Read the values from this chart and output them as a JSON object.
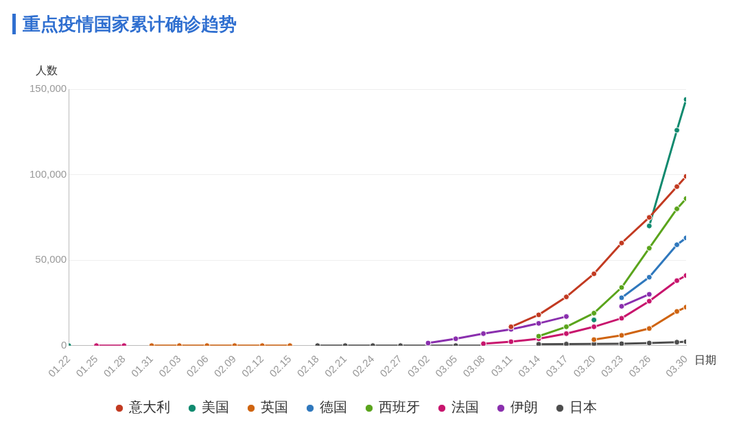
{
  "chart_data": {
    "type": "line",
    "title": "重点疫情国家累计确诊趋势",
    "ylabel": "人数",
    "xlabel": "日期",
    "x": [
      "--01-22",
      "--01-25",
      "--01-28",
      "--01-31",
      "--02-03",
      "--02-06",
      "--02-09",
      "--02-12",
      "--02-15",
      "--02-18",
      "--02-21",
      "--02-24",
      "--02-27",
      "--03-02",
      "--03-05",
      "--03-08",
      "--03-11",
      "--03-14",
      "--03-17",
      "--03-20",
      "--03-23",
      "--03-26",
      "--03-29",
      "--03-30"
    ],
    "xlim": [
      "--01-22",
      "--03-30"
    ],
    "xticks": [
      {
        "value": "--01-22",
        "label": "01.22"
      },
      {
        "value": "--01-25",
        "label": "01.25"
      },
      {
        "value": "--01-28",
        "label": "01.28"
      },
      {
        "value": "--01-31",
        "label": "01.31"
      },
      {
        "value": "--02-03",
        "label": "02.03"
      },
      {
        "value": "--02-06",
        "label": "02.06"
      },
      {
        "value": "--02-09",
        "label": "02.09"
      },
      {
        "value": "--02-12",
        "label": "02.12"
      },
      {
        "value": "--02-15",
        "label": "02.15"
      },
      {
        "value": "--02-18",
        "label": "02.18"
      },
      {
        "value": "--02-21",
        "label": "02.21"
      },
      {
        "value": "--02-24",
        "label": "02.24"
      },
      {
        "value": "--02-27",
        "label": "02.27"
      },
      {
        "value": "--03-02",
        "label": "03.02"
      },
      {
        "value": "--03-05",
        "label": "03.05"
      },
      {
        "value": "--03-08",
        "label": "03.08"
      },
      {
        "value": "--03-11",
        "label": "03.11"
      },
      {
        "value": "--03-14",
        "label": "03.14"
      },
      {
        "value": "--03-17",
        "label": "03.17"
      },
      {
        "value": "--03-20",
        "label": "03.20"
      },
      {
        "value": "--03-23",
        "label": "03.23"
      },
      {
        "value": "--03-26",
        "label": "03.26"
      },
      {
        "value": "--03-30",
        "label": "03.30"
      }
    ],
    "ylim": [
      0,
      150000
    ],
    "yticks": [
      0,
      {
        "value": 50000,
        "label": "50,000"
      },
      {
        "value": 100000,
        "label": "100,000"
      },
      {
        "value": 150000,
        "label": "150,000"
      }
    ],
    "grid": "y",
    "legend": "bottom",
    "marker": "circle",
    "line_style": "solid",
    "series": [
      {
        "name": "意大利",
        "color": "#c23a21",
        "values": [
          null,
          null,
          null,
          null,
          null,
          null,
          null,
          null,
          null,
          null,
          null,
          null,
          null,
          null,
          null,
          null,
          11000,
          18000,
          28500,
          42000,
          60000,
          75000,
          93000,
          99000
        ]
      },
      {
        "name": "美国",
        "color": "#108a6f",
        "values": [
          0,
          null,
          null,
          null,
          null,
          null,
          null,
          null,
          null,
          null,
          null,
          null,
          null,
          null,
          null,
          null,
          null,
          null,
          null,
          15000,
          null,
          70000,
          126000,
          144000
        ]
      },
      {
        "name": "英国",
        "color": "#cf6410",
        "values": [
          null,
          null,
          null,
          0,
          0,
          0,
          0,
          0,
          0,
          null,
          null,
          null,
          null,
          null,
          null,
          null,
          null,
          null,
          null,
          3500,
          6000,
          10000,
          20000,
          22500
        ]
      },
      {
        "name": "德国",
        "color": "#2f78bd",
        "values": [
          null,
          null,
          null,
          null,
          null,
          null,
          null,
          null,
          null,
          null,
          null,
          null,
          null,
          null,
          null,
          null,
          null,
          null,
          null,
          null,
          28000,
          40000,
          59000,
          63000
        ]
      },
      {
        "name": "西班牙",
        "color": "#5aa41c",
        "values": [
          null,
          null,
          null,
          null,
          null,
          null,
          null,
          null,
          null,
          null,
          null,
          null,
          null,
          null,
          null,
          null,
          null,
          5500,
          11000,
          19000,
          34000,
          57000,
          80000,
          86000
        ]
      },
      {
        "name": "法国",
        "color": "#c8156d",
        "values": [
          null,
          0,
          0,
          null,
          null,
          null,
          null,
          null,
          null,
          null,
          null,
          null,
          null,
          null,
          null,
          1100,
          2300,
          4000,
          7000,
          11000,
          16000,
          26000,
          38000,
          41000
        ]
      },
      {
        "name": "伊朗",
        "color": "#8a2fae",
        "values": [
          null,
          null,
          null,
          null,
          null,
          null,
          null,
          null,
          null,
          null,
          null,
          null,
          null,
          1500,
          4000,
          7000,
          9500,
          13000,
          17000,
          null,
          23000,
          30000,
          null,
          null
        ]
      },
      {
        "name": "日本",
        "color": "#4d4d4d",
        "values": [
          null,
          null,
          null,
          null,
          null,
          null,
          null,
          null,
          null,
          0,
          0,
          0,
          0,
          0,
          0,
          0,
          null,
          800,
          900,
          1000,
          1100,
          1500,
          2000,
          2300
        ]
      }
    ]
  }
}
